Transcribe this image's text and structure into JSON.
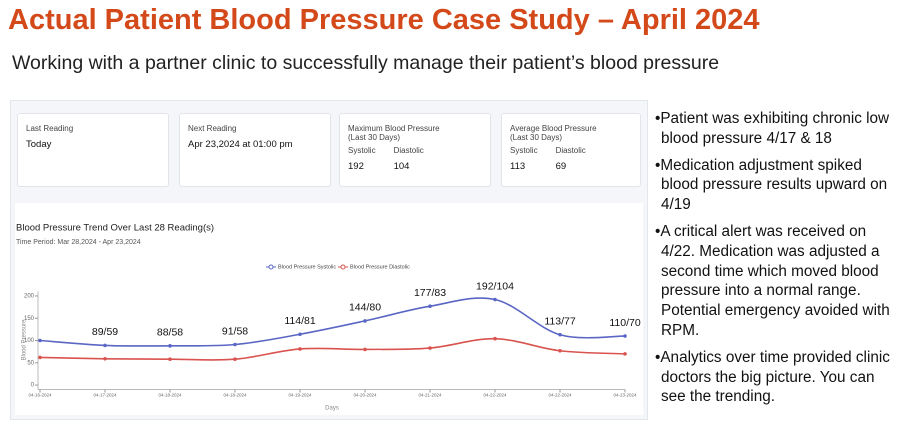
{
  "header": {
    "title": "Actual Patient Blood Pressure Case Study – April 2024",
    "subtitle": "Working with a partner clinic to successfully manage their patient’s blood pressure"
  },
  "cards": [
    {
      "label": "Last Reading",
      "value": "Today"
    },
    {
      "label": "Next Reading",
      "value": "Apr 23,2024 at 01:00 pm"
    },
    {
      "label": "Maximum Blood Pressure",
      "period": "(Last 30 Days)",
      "systolic_label": "Systolic",
      "systolic": "192",
      "diastolic_label": "Diastolic",
      "diastolic": "104"
    },
    {
      "label": "Average Blood Pressure",
      "period": "(Last 30 Days)",
      "systolic_label": "Systolic",
      "systolic": "113",
      "diastolic_label": "Diastolic",
      "diastolic": "69"
    }
  ],
  "chart_data": {
    "type": "line",
    "title": "Blood Pressure Trend Over Last 28 Reading(s)",
    "subtitle": "Time Period: Mar 28,2024 - Apr 23,2024",
    "x_label": "Days",
    "y_label": "Blood Pressure",
    "categories": [
      "04-16-2024",
      "04-17-2024",
      "04-18-2024",
      "04-18-2024",
      "04-19-2024",
      "04-20-2024",
      "04-21-2024",
      "04-22-2024",
      "04-22-2024",
      "04-23-2024"
    ],
    "series": [
      {
        "name": "Blood Pressure Systolic",
        "color": "#5a66c4",
        "values": [
          100,
          89,
          88,
          91,
          114,
          144,
          177,
          192,
          113,
          110
        ]
      },
      {
        "name": "Blood Pressure Diastolic",
        "color": "#d9534f",
        "values": [
          62,
          59,
          58,
          58,
          81,
          80,
          83,
          104,
          77,
          70
        ]
      }
    ],
    "point_labels": [
      null,
      "89/59",
      "88/58",
      "91/58",
      "114/81",
      "144/80",
      "177/83",
      "192/104",
      "113/77",
      "110/70"
    ],
    "ylim": [
      -10,
      210
    ],
    "yticks": [
      0,
      50,
      100,
      150,
      200
    ],
    "legend": "top"
  },
  "bullets": [
    "•Patient was exhibiting chronic low blood pressure 4/17 & 18",
    "•Medication adjustment spiked blood pressure results upward on 4/19",
    "•A critical alert was received on 4/22.  Medication was adjusted a second time which moved blood pressure into a normal range.  Potential emergency avoided with RPM.",
    "•Analytics over time provided clinic doctors the big picture.  You can see the trending."
  ]
}
